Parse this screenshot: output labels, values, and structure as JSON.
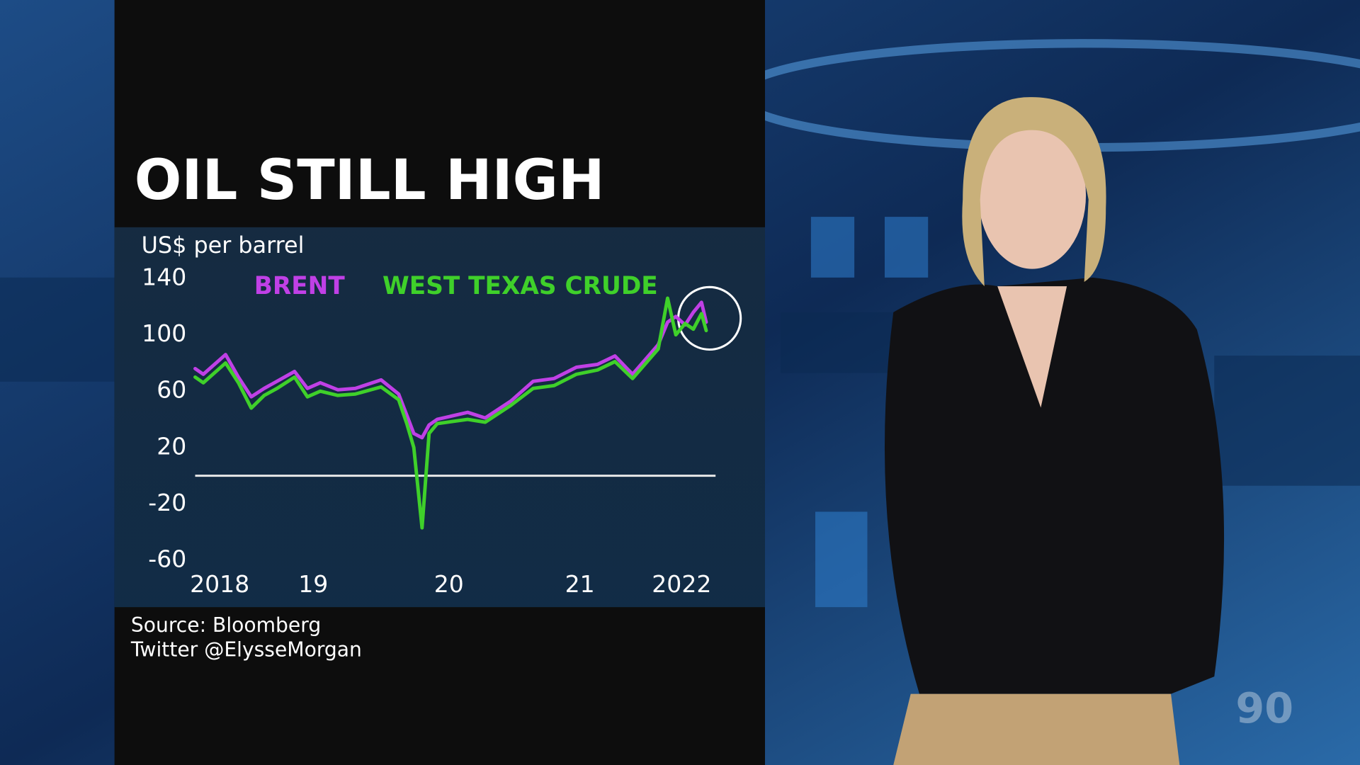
{
  "chart_data": {
    "type": "line",
    "title": "OIL STILL HIGH",
    "y_label": "US$ per barrel",
    "source": "Source: Bloomberg",
    "credit": "Twitter @ElysseMorgan",
    "x": [
      2018.0,
      2018.07,
      2018.26,
      2018.37,
      2018.48,
      2018.59,
      2018.7,
      2018.85,
      2018.96,
      2019.07,
      2019.22,
      2019.37,
      2019.59,
      2019.74,
      2019.81,
      2019.87,
      2019.94,
      2020.0,
      2020.07,
      2020.33,
      2020.48,
      2020.7,
      2020.89,
      2021.07,
      2021.26,
      2021.44,
      2021.59,
      2021.74,
      2021.96,
      2022.04,
      2022.11,
      2022.19,
      2022.26,
      2022.33,
      2022.37
    ],
    "series": [
      {
        "name": "BRENT",
        "color": "#c040e6",
        "values": [
          76,
          72,
          86,
          70,
          56,
          62,
          67,
          74,
          62,
          66,
          61,
          62,
          68,
          58,
          43,
          30,
          27,
          36,
          40,
          45,
          41,
          53,
          67,
          69,
          77,
          79,
          85,
          72,
          93,
          109,
          113,
          107,
          116,
          123,
          109
        ]
      },
      {
        "name": "WEST TEXAS CRUDE",
        "color": "#3fd02a",
        "values": [
          70,
          66,
          80,
          66,
          48,
          57,
          62,
          70,
          56,
          60,
          57,
          58,
          63,
          54,
          37,
          20,
          -37,
          30,
          37,
          40,
          38,
          50,
          62,
          64,
          72,
          75,
          81,
          69,
          90,
          126,
          100,
          108,
          104,
          115,
          103
        ]
      }
    ],
    "xlim": [
      2018,
      2022.45
    ],
    "ylim": [
      -60,
      140
    ],
    "xticks": [
      {
        "value": 2018.21,
        "label": "2018"
      },
      {
        "value": 2019.01,
        "label": "19"
      },
      {
        "value": 2020.17,
        "label": "20"
      },
      {
        "value": 2021.29,
        "label": "21"
      },
      {
        "value": 2022.16,
        "label": "2022"
      }
    ],
    "yticks": [
      -60,
      -20,
      20,
      60,
      100,
      140
    ],
    "zero_line": true,
    "logo": "90"
  }
}
